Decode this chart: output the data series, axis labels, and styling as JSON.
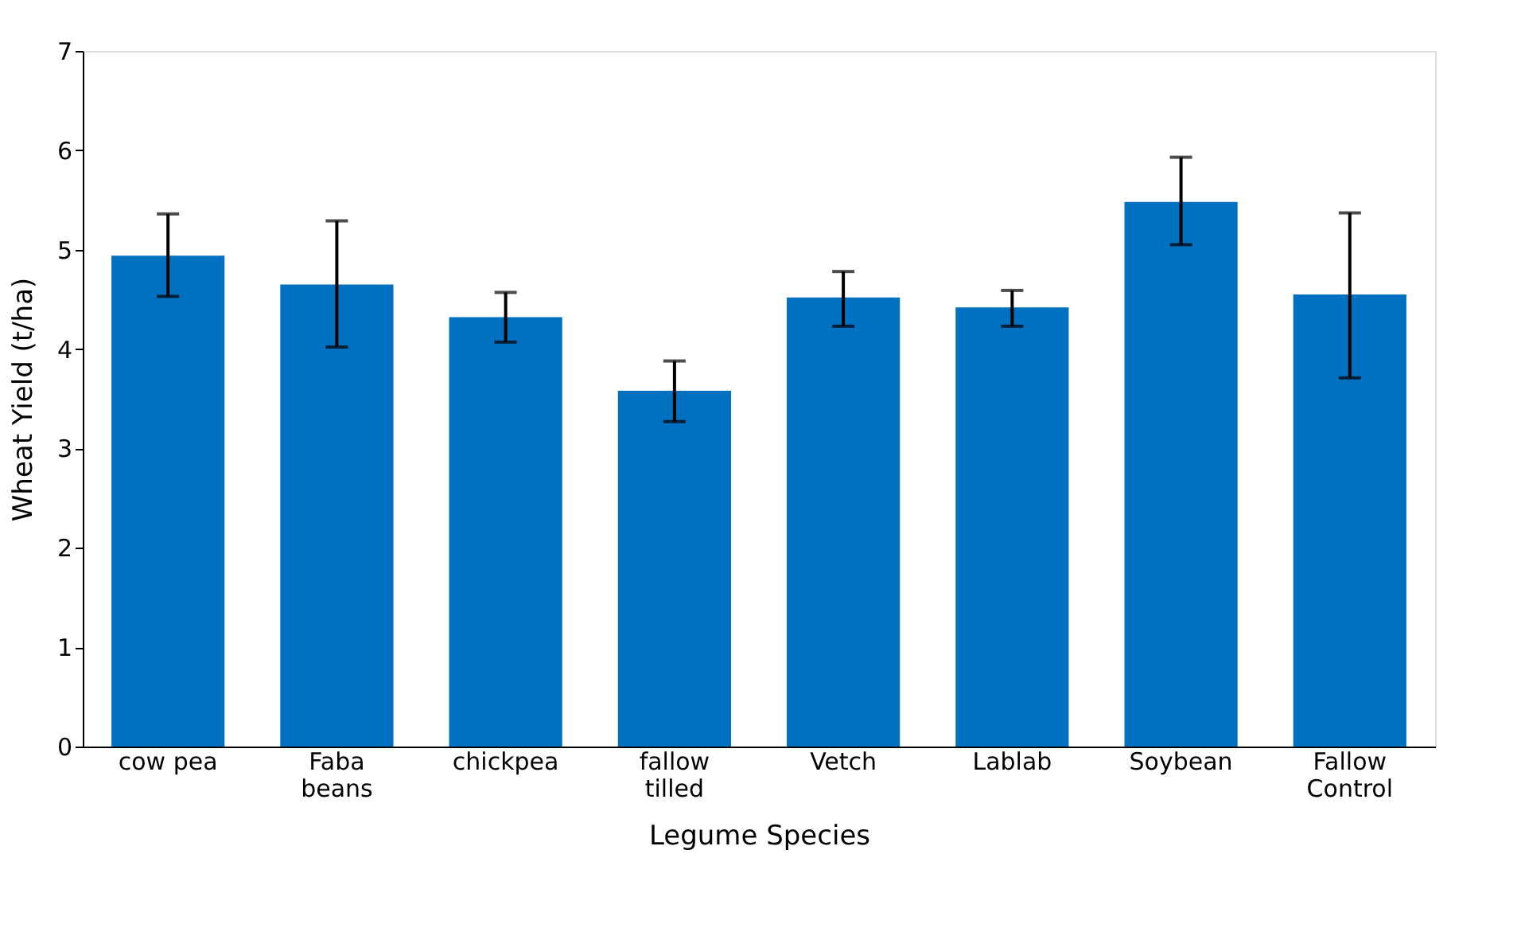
{
  "chart_data": {
    "type": "bar",
    "categories": [
      "cow pea",
      "Faba\nbeans",
      "chickpea",
      "fallow\ntilled",
      "Vetch",
      "Lablab",
      "Soybean",
      "Fallow\nControl"
    ],
    "values": [
      4.94,
      4.65,
      4.32,
      3.58,
      4.52,
      4.42,
      5.48,
      4.55
    ],
    "errors": [
      [
        4.53,
        5.36
      ],
      [
        4.02,
        5.29
      ],
      [
        4.07,
        4.57
      ],
      [
        3.27,
        3.88
      ],
      [
        4.23,
        4.78
      ],
      [
        4.23,
        4.59
      ],
      [
        5.05,
        5.93
      ],
      [
        3.71,
        5.37
      ]
    ],
    "color": "#0070c0",
    "xlabel": "Legume Species",
    "ylabel": "Wheat Yield  (t/ha)",
    "ylim": [
      0,
      7
    ],
    "yticks": [
      0,
      1,
      2,
      3,
      4,
      5,
      6,
      7
    ],
    "grid": false
  }
}
